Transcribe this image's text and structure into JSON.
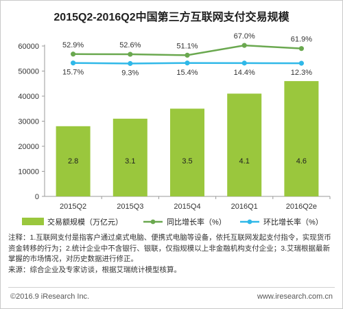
{
  "chart_data": {
    "type": "bar",
    "title": "2015Q2-2016Q2中国第三方互联网支付交易规模",
    "categories": [
      "2015Q2",
      "2015Q3",
      "2015Q4",
      "2016Q1",
      "2016Q2e"
    ],
    "ylim": [
      0,
      60000
    ],
    "yticks": [
      0,
      10000,
      20000,
      30000,
      40000,
      50000,
      60000
    ],
    "bar_series": {
      "name": "交易额规模（万亿元）",
      "values": [
        2.8,
        3.1,
        3.5,
        4.1,
        4.6
      ],
      "color": "#9ac73d"
    },
    "line_series": [
      {
        "name": "同比增长率（%）",
        "values": [
          "52.9%",
          "52.6%",
          "51.1%",
          "67.0%",
          "61.9%"
        ],
        "color": "#6aa84f"
      },
      {
        "name": "环比增长率（%）",
        "values": [
          "15.7%",
          "9.3%",
          "15.4%",
          "14.4%",
          "12.3%"
        ],
        "color": "#2fb8e8"
      }
    ],
    "grid": false,
    "legend_position": "bottom"
  },
  "notes": [
    "注释：1.互联网支付是指客户通过桌式电脑、便携式电脑等设备，依托互联网发起支付指令，实现货币资金转移的行为；2.统计企业中不含银行、银联，仅指规模以上非金融机构支付企业；3.艾瑞根据最新掌握的市场情况，对历史数据进行修正。",
    "来源：综合企业及专家访谈，根据艾瑞统计模型核算。"
  ],
  "footer": {
    "copyright": "©2016.9 iResearch Inc.",
    "website": "www.iresearch.com.cn"
  }
}
